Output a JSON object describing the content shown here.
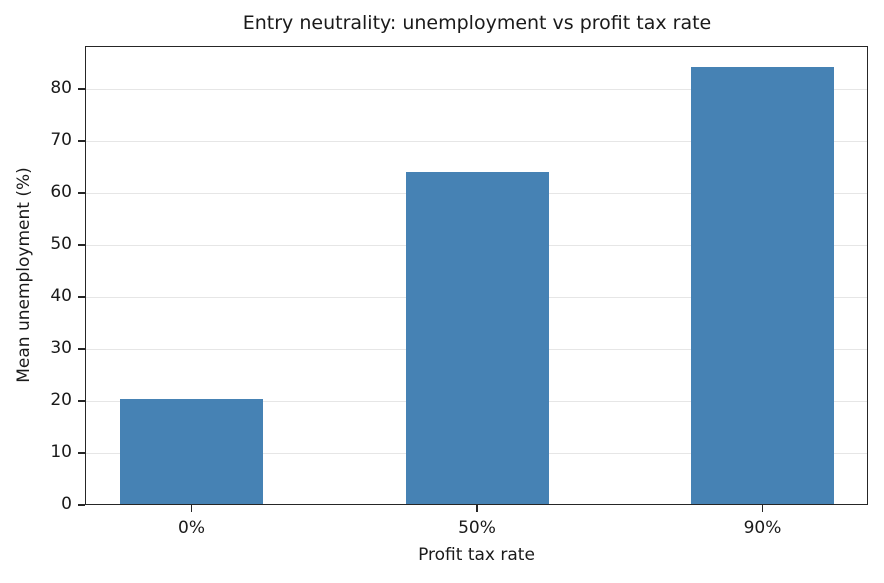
{
  "chart_data": {
    "type": "bar",
    "title": "Entry neutrality: unemployment vs profit tax rate",
    "xlabel": "Profit tax rate",
    "ylabel": "Mean unemployment (%)",
    "categories": [
      "0%",
      "50%",
      "90%"
    ],
    "values": [
      20.3,
      64.0,
      84.2
    ],
    "ylim": [
      0,
      88.4
    ],
    "yticks": [
      0,
      10,
      20,
      30,
      40,
      50,
      60,
      70,
      80
    ],
    "grid": {
      "axis": "y",
      "on": true
    },
    "legend": null,
    "colors": {
      "bar": "#4682B4",
      "grid": "#e6e6e6",
      "axes": "#262626"
    }
  }
}
